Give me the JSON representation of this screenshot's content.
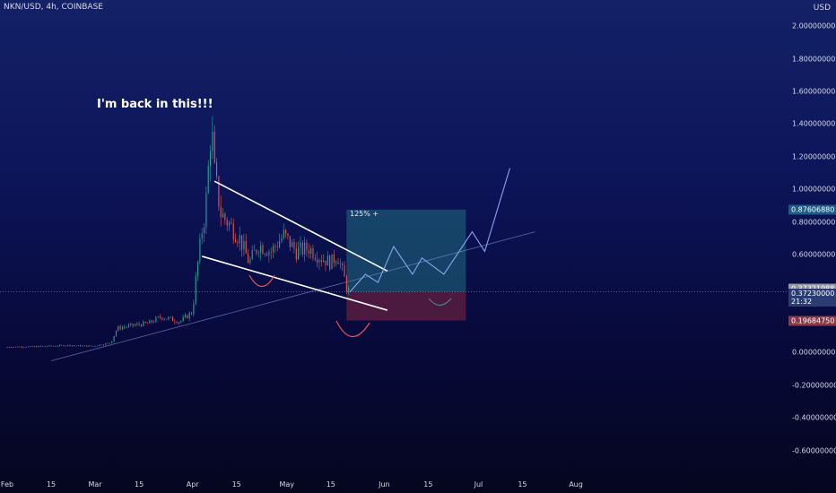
{
  "header": {
    "symbol": "NKN/USD, 4h, COINBASE",
    "currency": "USD"
  },
  "annotations": {
    "comment": "I'm back in this!!!",
    "target_pct": "125% +"
  },
  "price_tags": {
    "target": {
      "value": "0.87606880",
      "color": "#1e5b85"
    },
    "last": {
      "value": "0.37321988",
      "color": "#9598a1"
    },
    "entry": {
      "value": "0.37230000",
      "countdown": "21:32",
      "color": "#2a3d70"
    },
    "stop": {
      "value": "0.19684750",
      "color": "#883a48"
    }
  },
  "colors": {
    "up": "#26a69a",
    "down": "#ef5350",
    "trendline": "#ffffff",
    "profit_zone": "#1f6e7e",
    "loss_zone": "#7a2440",
    "projection": "#8ea2f0"
  },
  "chart_data": {
    "type": "candlestick",
    "y_axis": {
      "ticks": [
        "2.00000000",
        "1.80000000",
        "1.60000000",
        "1.40000000",
        "1.20000000",
        "1.00000000",
        "0.80000000",
        "0.60000000",
        "0.40000000",
        "0.00000000",
        "-0.20000000",
        "-0.40000000",
        "-0.60000000"
      ],
      "ylim": [
        -0.64,
        2.05
      ]
    },
    "x_axis": {
      "ticks": [
        "Feb",
        "15",
        "Mar",
        "15",
        "Apr",
        "15",
        "May",
        "15",
        "Jun",
        "15",
        "Jul",
        "15",
        "Aug"
      ],
      "dates": [
        "2021-02-01",
        "2021-02-15",
        "2021-03-01",
        "2021-03-15",
        "2021-04-01",
        "2021-04-15",
        "2021-05-01",
        "2021-05-15",
        "2021-06-01",
        "2021-06-15",
        "2021-07-01",
        "2021-07-15",
        "2021-08-01"
      ]
    },
    "price_path": [
      [
        "2021-02-01",
        0.035
      ],
      [
        "2021-02-10",
        0.037
      ],
      [
        "2021-02-20",
        0.045
      ],
      [
        "2021-02-28",
        0.04
      ],
      [
        "2021-03-06",
        0.06
      ],
      [
        "2021-03-08",
        0.15
      ],
      [
        "2021-03-14",
        0.17
      ],
      [
        "2021-03-18",
        0.18
      ],
      [
        "2021-03-22",
        0.22
      ],
      [
        "2021-03-28",
        0.19
      ],
      [
        "2021-04-01",
        0.25
      ],
      [
        "2021-04-02",
        0.45
      ],
      [
        "2021-04-04",
        0.75
      ],
      [
        "2021-04-05",
        0.85
      ],
      [
        "2021-04-07",
        1.4
      ],
      [
        "2021-04-08",
        1.1
      ],
      [
        "2021-04-10",
        0.85
      ],
      [
        "2021-04-13",
        0.78
      ],
      [
        "2021-04-16",
        0.7
      ],
      [
        "2021-04-19",
        0.55
      ],
      [
        "2021-04-22",
        0.66
      ],
      [
        "2021-04-26",
        0.62
      ],
      [
        "2021-04-30",
        0.72
      ],
      [
        "2021-05-04",
        0.62
      ],
      [
        "2021-05-08",
        0.64
      ],
      [
        "2021-05-12",
        0.58
      ],
      [
        "2021-05-15",
        0.55
      ],
      [
        "2021-05-17",
        0.6
      ],
      [
        "2021-05-19",
        0.48
      ],
      [
        "2021-05-20",
        0.4
      ],
      [
        "2021-05-21",
        0.37
      ]
    ],
    "falling_wedge": {
      "upper": [
        [
          "2021-04-08",
          1.05
        ],
        [
          "2021-06-02",
          0.5
        ]
      ],
      "lower": [
        [
          "2021-04-04",
          0.59
        ],
        [
          "2021-06-02",
          0.26
        ]
      ]
    },
    "support_line": [
      [
        "2021-02-15",
        -0.05
      ],
      [
        "2021-07-19",
        0.74
      ]
    ],
    "projection": [
      [
        "2021-05-21",
        0.37
      ],
      [
        "2021-05-26",
        0.48
      ],
      [
        "2021-05-30",
        0.43
      ],
      [
        "2021-06-04",
        0.65
      ],
      [
        "2021-06-10",
        0.48
      ],
      [
        "2021-06-13",
        0.58
      ],
      [
        "2021-06-20",
        0.48
      ],
      [
        "2021-06-29",
        0.74
      ],
      [
        "2021-07-03",
        0.62
      ],
      [
        "2021-07-11",
        1.13
      ]
    ],
    "position": {
      "start": "2021-05-20",
      "end": "2021-06-27",
      "entry": 0.3723,
      "target": 0.8761,
      "stop": 0.1968
    }
  }
}
